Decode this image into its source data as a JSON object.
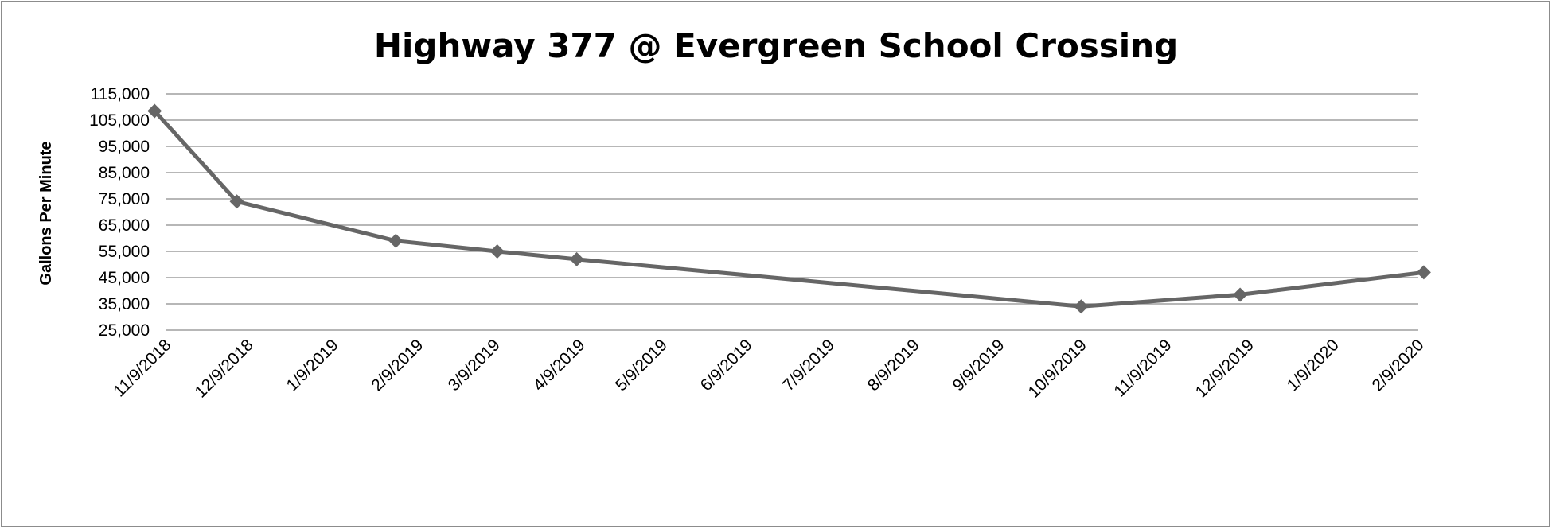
{
  "chart_data": {
    "type": "line",
    "title": "Highway 377 @ Evergreen School Crossing",
    "xlabel": "",
    "ylabel": "Gallons Per Minute",
    "x_tick_labels": [
      "11/9/2018",
      "12/9/2018",
      "1/9/2019",
      "2/9/2019",
      "3/9/2019",
      "4/9/2019",
      "5/9/2019",
      "6/9/2019",
      "7/9/2019",
      "8/9/2019",
      "9/9/2019",
      "10/9/2019",
      "11/9/2019",
      "12/9/2019",
      "1/9/2020",
      "2/9/2020"
    ],
    "y_tick_labels": [
      "25,000",
      "35,000",
      "45,000",
      "55,000",
      "65,000",
      "75,000",
      "85,000",
      "95,000",
      "105,000",
      "115,000"
    ],
    "ylim": [
      25000,
      115000
    ],
    "xlim": [
      "11/9/2018",
      "2/9/2020"
    ],
    "grid": true,
    "legend": "none",
    "series": [
      {
        "color": "#666666",
        "marker": "diamond",
        "x": [
          "11/5/2018",
          "12/5/2018",
          "2/1/2019",
          "3/10/2019",
          "4/8/2019",
          "10/9/2019",
          "12/6/2019",
          "2/11/2020"
        ],
        "y": [
          108500,
          74000,
          59000,
          55000,
          52000,
          34000,
          38500,
          47000
        ]
      }
    ]
  },
  "colors": {
    "line": "#666666",
    "grid": "#8c8c8c",
    "border": "#8c8c8c"
  }
}
